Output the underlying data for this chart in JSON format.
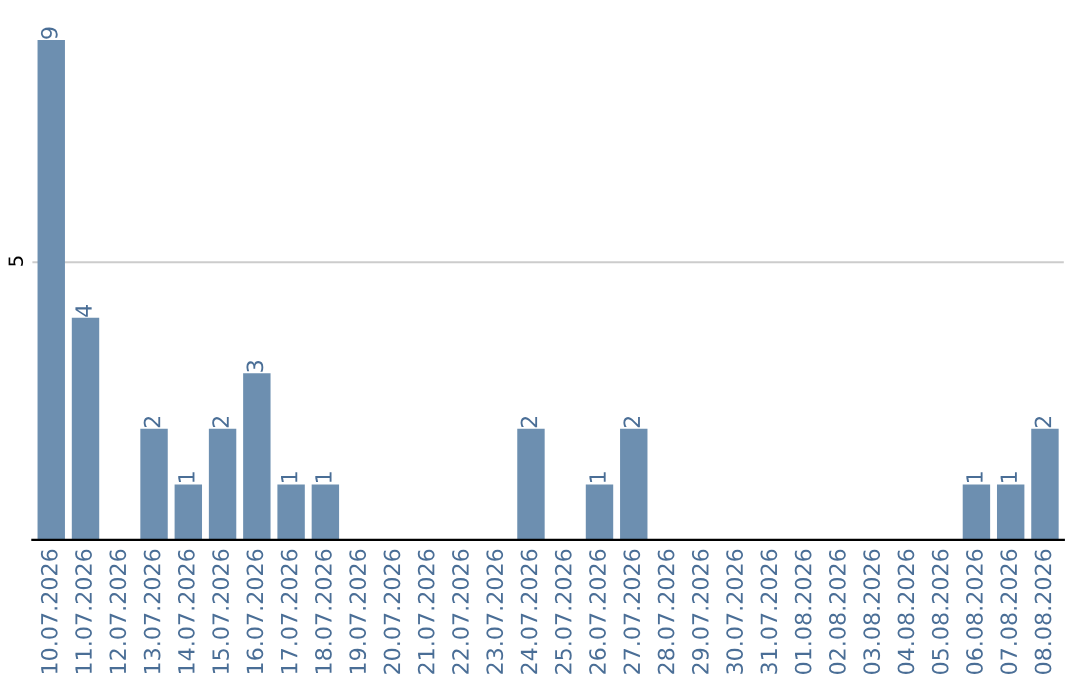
{
  "chart_data": {
    "type": "bar",
    "categories": [
      "10.07.2026",
      "11.07.2026",
      "12.07.2026",
      "13.07.2026",
      "14.07.2026",
      "15.07.2026",
      "16.07.2026",
      "17.07.2026",
      "18.07.2026",
      "19.07.2026",
      "20.07.2026",
      "21.07.2026",
      "22.07.2026",
      "23.07.2026",
      "24.07.2026",
      "25.07.2026",
      "26.07.2026",
      "27.07.2026",
      "28.07.2026",
      "29.07.2026",
      "30.07.2026",
      "31.07.2026",
      "01.08.2026",
      "02.08.2026",
      "03.08.2026",
      "04.08.2026",
      "05.08.2026",
      "06.08.2026",
      "07.08.2026",
      "08.08.2026"
    ],
    "values": [
      9,
      4,
      0,
      2,
      1,
      2,
      3,
      1,
      1,
      0,
      0,
      0,
      0,
      0,
      2,
      0,
      1,
      2,
      0,
      0,
      0,
      0,
      0,
      0,
      0,
      0,
      0,
      1,
      1,
      2
    ],
    "value_labels": [
      "9",
      "4",
      null,
      "2",
      "1",
      "2",
      "3",
      "1",
      "1",
      null,
      null,
      null,
      null,
      null,
      "2",
      null,
      "1",
      "2",
      null,
      null,
      null,
      null,
      null,
      null,
      null,
      null,
      null,
      "1",
      "1",
      "2"
    ],
    "color": "#6d8fb0",
    "ylim": [
      0,
      9
    ],
    "yticks": [
      5
    ],
    "grid": "y",
    "legend": false
  }
}
